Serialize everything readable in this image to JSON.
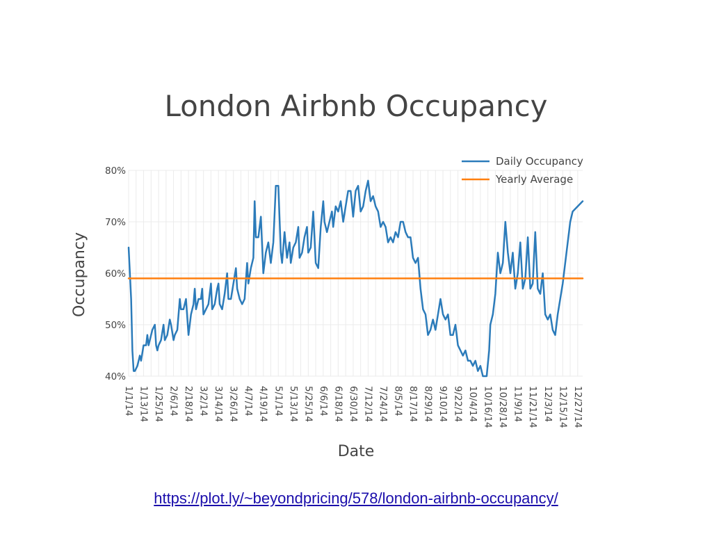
{
  "link": {
    "text": "https://plot.ly/~beyondpricing/578/london-airbnb-occupancy/"
  },
  "chart_data": {
    "type": "line",
    "title": "London Airbnb Occupancy",
    "xlabel": "Date",
    "ylabel": "Occupancy",
    "ylim": [
      0.4,
      0.8
    ],
    "xlim": [
      "1/1/14",
      "12/31/14"
    ],
    "grid": true,
    "legend_position": "top-right",
    "colors": {
      "daily": "#2b7bba",
      "average": "#ff7f0e",
      "grid": "#ebebeb",
      "text": "#444444"
    },
    "y_ticks": [
      {
        "value": 0.4,
        "label": "40%"
      },
      {
        "value": 0.5,
        "label": "50%"
      },
      {
        "value": 0.6,
        "label": "60%"
      },
      {
        "value": 0.7,
        "label": "70%"
      },
      {
        "value": 0.8,
        "label": "80%"
      }
    ],
    "x_ticks": [
      {
        "date": "1/1/14",
        "label": "1/1/14"
      },
      {
        "date": "1/13/14",
        "label": "1/13/14"
      },
      {
        "date": "1/25/14",
        "label": "1/25/14"
      },
      {
        "date": "2/6/14",
        "label": "2/6/14"
      },
      {
        "date": "2/18/14",
        "label": "2/18/14"
      },
      {
        "date": "3/2/14",
        "label": "3/2/14"
      },
      {
        "date": "3/14/14",
        "label": "3/14/14"
      },
      {
        "date": "3/26/14",
        "label": "3/26/14"
      },
      {
        "date": "4/7/14",
        "label": "4/7/14"
      },
      {
        "date": "4/19/14",
        "label": "4/19/14"
      },
      {
        "date": "5/1/14",
        "label": "5/1/14"
      },
      {
        "date": "5/13/14",
        "label": "5/13/14"
      },
      {
        "date": "5/25/14",
        "label": "5/25/14"
      },
      {
        "date": "6/6/14",
        "label": "6/6/14"
      },
      {
        "date": "6/18/14",
        "label": "6/18/14"
      },
      {
        "date": "6/30/14",
        "label": "6/30/14"
      },
      {
        "date": "7/12/14",
        "label": "7/12/14"
      },
      {
        "date": "7/24/14",
        "label": "7/24/14"
      },
      {
        "date": "8/5/14",
        "label": "8/5/14"
      },
      {
        "date": "8/17/14",
        "label": "8/17/14"
      },
      {
        "date": "8/29/14",
        "label": "8/29/14"
      },
      {
        "date": "9/10/14",
        "label": "9/10/14"
      },
      {
        "date": "9/22/14",
        "label": "9/22/14"
      },
      {
        "date": "10/4/14",
        "label": "10/4/14"
      },
      {
        "date": "10/16/14",
        "label": "10/16/14"
      },
      {
        "date": "10/28/14",
        "label": "10/28/14"
      },
      {
        "date": "11/9/14",
        "label": "11/9/14"
      },
      {
        "date": "11/21/14",
        "label": "11/21/14"
      },
      {
        "date": "12/3/14",
        "label": "12/3/14"
      },
      {
        "date": "12/15/14",
        "label": "12/15/14"
      },
      {
        "date": "12/27/14",
        "label": "12/27/14"
      }
    ],
    "series": [
      {
        "name": "Daily Occupancy",
        "points": [
          {
            "x": "1/1/14",
            "y": 0.65
          },
          {
            "x": "1/3/14",
            "y": 0.55
          },
          {
            "x": "1/4/14",
            "y": 0.45
          },
          {
            "x": "1/5/14",
            "y": 0.41
          },
          {
            "x": "1/6/14",
            "y": 0.41
          },
          {
            "x": "1/8/14",
            "y": 0.42
          },
          {
            "x": "1/10/14",
            "y": 0.44
          },
          {
            "x": "1/11/14",
            "y": 0.43
          },
          {
            "x": "1/13/14",
            "y": 0.46
          },
          {
            "x": "1/15/14",
            "y": 0.46
          },
          {
            "x": "1/16/14",
            "y": 0.48
          },
          {
            "x": "1/17/14",
            "y": 0.46
          },
          {
            "x": "1/18/14",
            "y": 0.47
          },
          {
            "x": "1/20/14",
            "y": 0.49
          },
          {
            "x": "1/22/14",
            "y": 0.5
          },
          {
            "x": "1/23/14",
            "y": 0.46
          },
          {
            "x": "1/24/14",
            "y": 0.45
          },
          {
            "x": "1/25/14",
            "y": 0.46
          },
          {
            "x": "1/27/14",
            "y": 0.47
          },
          {
            "x": "1/29/14",
            "y": 0.5
          },
          {
            "x": "1/30/14",
            "y": 0.47
          },
          {
            "x": "2/1/14",
            "y": 0.48
          },
          {
            "x": "2/3/14",
            "y": 0.51
          },
          {
            "x": "2/4/14",
            "y": 0.5
          },
          {
            "x": "2/6/14",
            "y": 0.47
          },
          {
            "x": "2/7/14",
            "y": 0.48
          },
          {
            "x": "2/9/14",
            "y": 0.49
          },
          {
            "x": "2/11/14",
            "y": 0.55
          },
          {
            "x": "2/12/14",
            "y": 0.53
          },
          {
            "x": "2/14/14",
            "y": 0.53
          },
          {
            "x": "2/16/14",
            "y": 0.55
          },
          {
            "x": "2/18/14",
            "y": 0.48
          },
          {
            "x": "2/20/14",
            "y": 0.52
          },
          {
            "x": "2/22/14",
            "y": 0.54
          },
          {
            "x": "2/23/14",
            "y": 0.57
          },
          {
            "x": "2/24/14",
            "y": 0.53
          },
          {
            "x": "2/26/14",
            "y": 0.55
          },
          {
            "x": "2/28/14",
            "y": 0.55
          },
          {
            "x": "3/1/14",
            "y": 0.57
          },
          {
            "x": "3/2/14",
            "y": 0.52
          },
          {
            "x": "3/4/14",
            "y": 0.53
          },
          {
            "x": "3/6/14",
            "y": 0.54
          },
          {
            "x": "3/8/14",
            "y": 0.58
          },
          {
            "x": "3/9/14",
            "y": 0.53
          },
          {
            "x": "3/11/14",
            "y": 0.54
          },
          {
            "x": "3/13/14",
            "y": 0.57
          },
          {
            "x": "3/14/14",
            "y": 0.58
          },
          {
            "x": "3/15/14",
            "y": 0.54
          },
          {
            "x": "3/17/14",
            "y": 0.53
          },
          {
            "x": "3/19/14",
            "y": 0.56
          },
          {
            "x": "3/21/14",
            "y": 0.6
          },
          {
            "x": "3/22/14",
            "y": 0.55
          },
          {
            "x": "3/24/14",
            "y": 0.55
          },
          {
            "x": "3/26/14",
            "y": 0.58
          },
          {
            "x": "3/28/14",
            "y": 0.61
          },
          {
            "x": "3/29/14",
            "y": 0.57
          },
          {
            "x": "3/31/14",
            "y": 0.55
          },
          {
            "x": "4/2/14",
            "y": 0.54
          },
          {
            "x": "4/4/14",
            "y": 0.55
          },
          {
            "x": "4/6/14",
            "y": 0.62
          },
          {
            "x": "4/7/14",
            "y": 0.58
          },
          {
            "x": "4/9/14",
            "y": 0.61
          },
          {
            "x": "4/11/14",
            "y": 0.63
          },
          {
            "x": "4/12/14",
            "y": 0.74
          },
          {
            "x": "4/13/14",
            "y": 0.67
          },
          {
            "x": "4/15/14",
            "y": 0.67
          },
          {
            "x": "4/17/14",
            "y": 0.71
          },
          {
            "x": "4/19/14",
            "y": 0.6
          },
          {
            "x": "4/21/14",
            "y": 0.64
          },
          {
            "x": "4/23/14",
            "y": 0.66
          },
          {
            "x": "4/25/14",
            "y": 0.62
          },
          {
            "x": "4/27/14",
            "y": 0.66
          },
          {
            "x": "4/29/14",
            "y": 0.77
          },
          {
            "x": "5/1/14",
            "y": 0.77
          },
          {
            "x": "5/3/14",
            "y": 0.64
          },
          {
            "x": "5/4/14",
            "y": 0.62
          },
          {
            "x": "5/6/14",
            "y": 0.68
          },
          {
            "x": "5/8/14",
            "y": 0.63
          },
          {
            "x": "5/10/14",
            "y": 0.66
          },
          {
            "x": "5/11/14",
            "y": 0.62
          },
          {
            "x": "5/13/14",
            "y": 0.65
          },
          {
            "x": "5/15/14",
            "y": 0.66
          },
          {
            "x": "5/17/14",
            "y": 0.69
          },
          {
            "x": "5/18/14",
            "y": 0.63
          },
          {
            "x": "5/20/14",
            "y": 0.64
          },
          {
            "x": "5/22/14",
            "y": 0.67
          },
          {
            "x": "5/24/14",
            "y": 0.69
          },
          {
            "x": "5/25/14",
            "y": 0.64
          },
          {
            "x": "5/27/14",
            "y": 0.65
          },
          {
            "x": "5/29/14",
            "y": 0.72
          },
          {
            "x": "5/31/14",
            "y": 0.62
          },
          {
            "x": "6/2/14",
            "y": 0.61
          },
          {
            "x": "6/4/14",
            "y": 0.69
          },
          {
            "x": "6/6/14",
            "y": 0.74
          },
          {
            "x": "6/7/14",
            "y": 0.7
          },
          {
            "x": "6/9/14",
            "y": 0.68
          },
          {
            "x": "6/11/14",
            "y": 0.7
          },
          {
            "x": "6/13/14",
            "y": 0.72
          },
          {
            "x": "6/14/14",
            "y": 0.69
          },
          {
            "x": "6/16/14",
            "y": 0.73
          },
          {
            "x": "6/18/14",
            "y": 0.72
          },
          {
            "x": "6/20/14",
            "y": 0.74
          },
          {
            "x": "6/22/14",
            "y": 0.7
          },
          {
            "x": "6/24/14",
            "y": 0.73
          },
          {
            "x": "6/26/14",
            "y": 0.76
          },
          {
            "x": "6/28/14",
            "y": 0.76
          },
          {
            "x": "6/30/14",
            "y": 0.71
          },
          {
            "x": "7/2/14",
            "y": 0.76
          },
          {
            "x": "7/4/14",
            "y": 0.77
          },
          {
            "x": "7/6/14",
            "y": 0.72
          },
          {
            "x": "7/8/14",
            "y": 0.73
          },
          {
            "x": "7/10/14",
            "y": 0.76
          },
          {
            "x": "7/12/14",
            "y": 0.78
          },
          {
            "x": "7/14/14",
            "y": 0.74
          },
          {
            "x": "7/16/14",
            "y": 0.75
          },
          {
            "x": "7/18/14",
            "y": 0.73
          },
          {
            "x": "7/20/14",
            "y": 0.72
          },
          {
            "x": "7/22/14",
            "y": 0.69
          },
          {
            "x": "7/24/14",
            "y": 0.7
          },
          {
            "x": "7/26/14",
            "y": 0.69
          },
          {
            "x": "7/28/14",
            "y": 0.66
          },
          {
            "x": "7/30/14",
            "y": 0.67
          },
          {
            "x": "8/1/14",
            "y": 0.66
          },
          {
            "x": "8/3/14",
            "y": 0.68
          },
          {
            "x": "8/5/14",
            "y": 0.67
          },
          {
            "x": "8/7/14",
            "y": 0.7
          },
          {
            "x": "8/9/14",
            "y": 0.7
          },
          {
            "x": "8/11/14",
            "y": 0.68
          },
          {
            "x": "8/13/14",
            "y": 0.67
          },
          {
            "x": "8/15/14",
            "y": 0.67
          },
          {
            "x": "8/17/14",
            "y": 0.63
          },
          {
            "x": "8/19/14",
            "y": 0.62
          },
          {
            "x": "8/21/14",
            "y": 0.63
          },
          {
            "x": "8/23/14",
            "y": 0.57
          },
          {
            "x": "8/25/14",
            "y": 0.53
          },
          {
            "x": "8/27/14",
            "y": 0.52
          },
          {
            "x": "8/29/14",
            "y": 0.48
          },
          {
            "x": "8/31/14",
            "y": 0.49
          },
          {
            "x": "9/2/14",
            "y": 0.51
          },
          {
            "x": "9/4/14",
            "y": 0.49
          },
          {
            "x": "9/6/14",
            "y": 0.52
          },
          {
            "x": "9/8/14",
            "y": 0.55
          },
          {
            "x": "9/10/14",
            "y": 0.52
          },
          {
            "x": "9/12/14",
            "y": 0.51
          },
          {
            "x": "9/14/14",
            "y": 0.52
          },
          {
            "x": "9/16/14",
            "y": 0.48
          },
          {
            "x": "9/18/14",
            "y": 0.48
          },
          {
            "x": "9/20/14",
            "y": 0.5
          },
          {
            "x": "9/22/14",
            "y": 0.46
          },
          {
            "x": "9/24/14",
            "y": 0.45
          },
          {
            "x": "9/26/14",
            "y": 0.44
          },
          {
            "x": "9/28/14",
            "y": 0.45
          },
          {
            "x": "9/30/14",
            "y": 0.43
          },
          {
            "x": "10/2/14",
            "y": 0.43
          },
          {
            "x": "10/4/14",
            "y": 0.42
          },
          {
            "x": "10/6/14",
            "y": 0.43
          },
          {
            "x": "10/8/14",
            "y": 0.41
          },
          {
            "x": "10/10/14",
            "y": 0.42
          },
          {
            "x": "10/12/14",
            "y": 0.4
          },
          {
            "x": "10/15/14",
            "y": 0.4
          },
          {
            "x": "10/17/14",
            "y": 0.45
          },
          {
            "x": "10/18/14",
            "y": 0.5
          },
          {
            "x": "10/20/14",
            "y": 0.52
          },
          {
            "x": "10/22/14",
            "y": 0.56
          },
          {
            "x": "10/24/14",
            "y": 0.64
          },
          {
            "x": "10/26/14",
            "y": 0.6
          },
          {
            "x": "10/28/14",
            "y": 0.62
          },
          {
            "x": "10/30/14",
            "y": 0.7
          },
          {
            "x": "11/1/14",
            "y": 0.64
          },
          {
            "x": "11/3/14",
            "y": 0.6
          },
          {
            "x": "11/5/14",
            "y": 0.64
          },
          {
            "x": "11/7/14",
            "y": 0.57
          },
          {
            "x": "11/9/14",
            "y": 0.6
          },
          {
            "x": "11/11/14",
            "y": 0.66
          },
          {
            "x": "11/13/14",
            "y": 0.57
          },
          {
            "x": "11/15/14",
            "y": 0.59
          },
          {
            "x": "11/17/14",
            "y": 0.67
          },
          {
            "x": "11/19/14",
            "y": 0.57
          },
          {
            "x": "11/21/14",
            "y": 0.58
          },
          {
            "x": "11/23/14",
            "y": 0.68
          },
          {
            "x": "11/25/14",
            "y": 0.57
          },
          {
            "x": "11/27/14",
            "y": 0.56
          },
          {
            "x": "11/29/14",
            "y": 0.6
          },
          {
            "x": "12/1/14",
            "y": 0.52
          },
          {
            "x": "12/3/14",
            "y": 0.51
          },
          {
            "x": "12/5/14",
            "y": 0.52
          },
          {
            "x": "12/7/14",
            "y": 0.49
          },
          {
            "x": "12/9/14",
            "y": 0.48
          },
          {
            "x": "12/11/14",
            "y": 0.52
          },
          {
            "x": "12/13/14",
            "y": 0.55
          },
          {
            "x": "12/15/14",
            "y": 0.58
          },
          {
            "x": "12/17/14",
            "y": 0.62
          },
          {
            "x": "12/19/14",
            "y": 0.66
          },
          {
            "x": "12/21/14",
            "y": 0.7
          },
          {
            "x": "12/23/14",
            "y": 0.72
          },
          {
            "x": "12/31/14",
            "y": 0.74
          }
        ]
      },
      {
        "name": "Yearly Average",
        "points": [
          {
            "x": "1/1/14",
            "y": 0.59
          },
          {
            "x": "12/31/14",
            "y": 0.59
          }
        ]
      }
    ]
  }
}
